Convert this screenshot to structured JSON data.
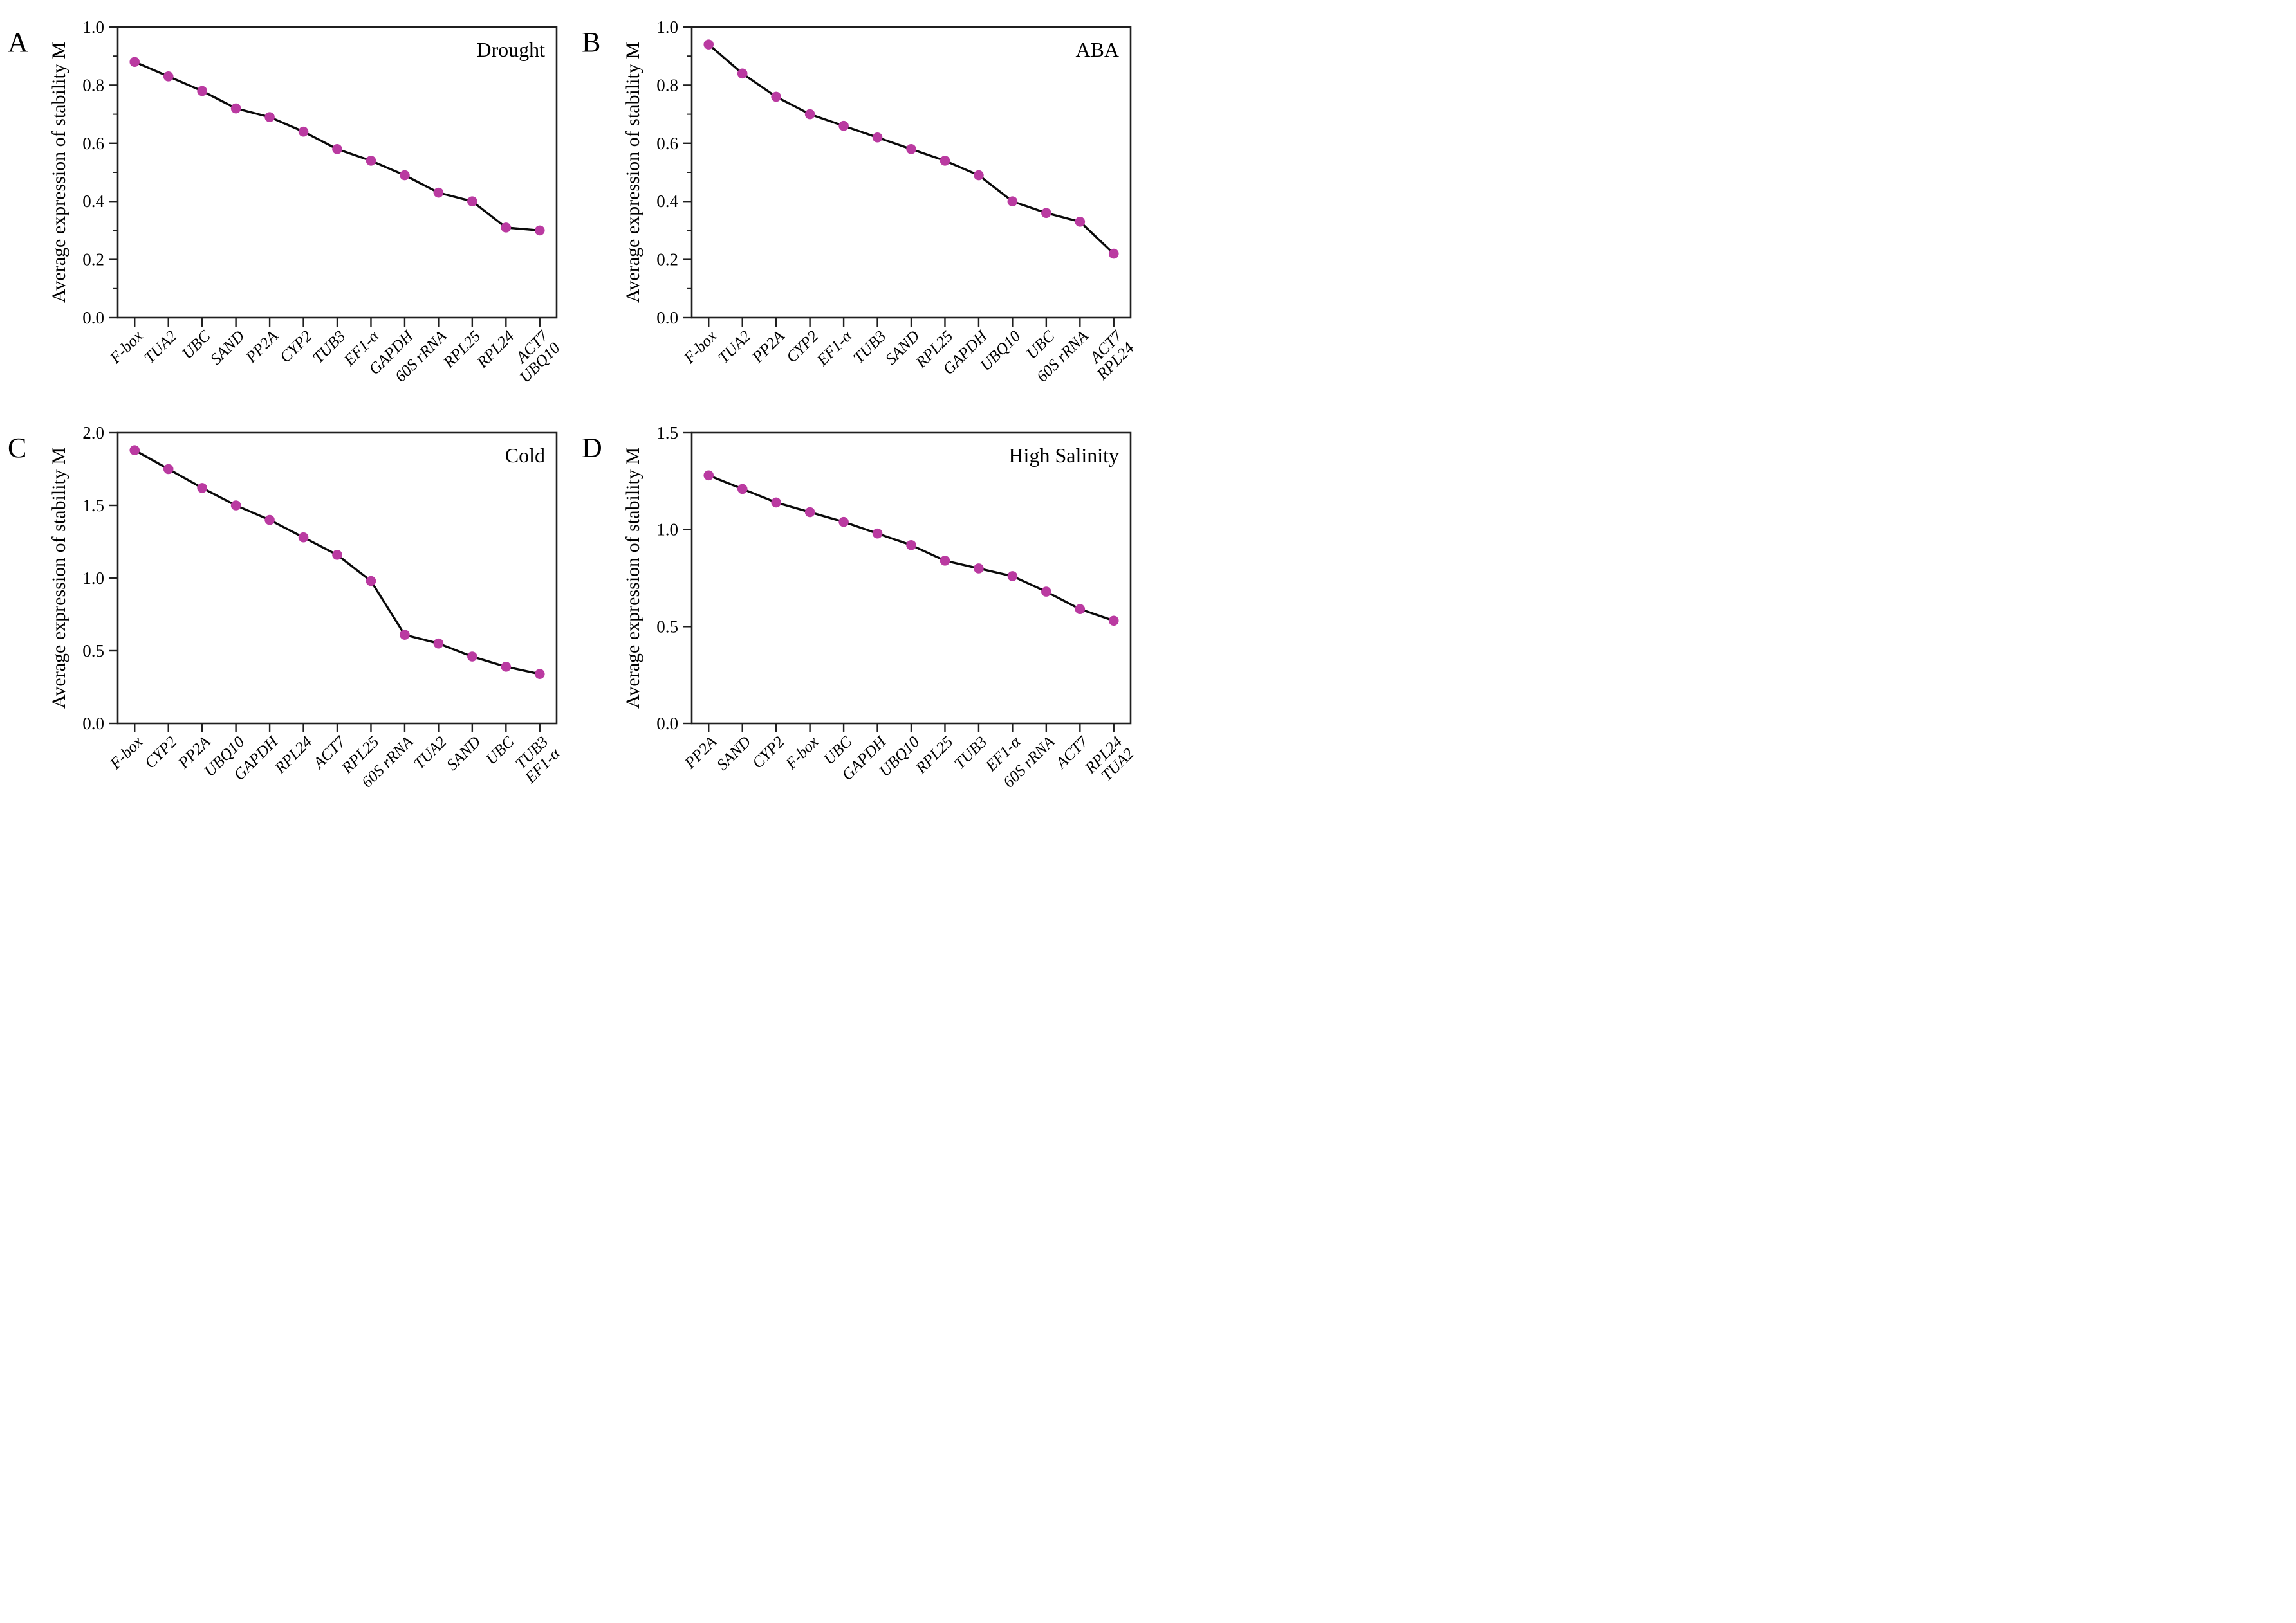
{
  "figure": {
    "background": "#ffffff",
    "marker_color": "#BA3AA1",
    "line_color": "#0a0a0a",
    "axis_color": "#1f1f1f",
    "y_axis_title": "Average expression of stability M"
  },
  "chart_data": [
    {
      "type": "line",
      "letter": "A",
      "title": "Drought",
      "ylabel": "Average expression of stability M",
      "ylim": [
        0.0,
        1.0
      ],
      "yticks": [
        0.0,
        0.2,
        0.4,
        0.6,
        0.8,
        1.0
      ],
      "minor_tick_step": 0.1,
      "legend_position": "none",
      "grid": false,
      "categories": [
        "F-box",
        "TUA2",
        "UBC",
        "SAND",
        "PP2A",
        "CYP2",
        "TUB3",
        "EF1-α",
        "GAPDH",
        "60S rRNA",
        "RPL25",
        "RPL24",
        "ACT7\nUBQ10"
      ],
      "values": [
        0.88,
        0.83,
        0.78,
        0.72,
        0.69,
        0.64,
        0.58,
        0.54,
        0.49,
        0.43,
        0.4,
        0.31,
        0.3
      ]
    },
    {
      "type": "line",
      "letter": "B",
      "title": "ABA",
      "ylabel": "Average expression of stability M",
      "ylim": [
        0.0,
        1.0
      ],
      "yticks": [
        0.0,
        0.2,
        0.4,
        0.6,
        0.8,
        1.0
      ],
      "minor_tick_step": 0.1,
      "legend_position": "none",
      "grid": false,
      "categories": [
        "F-box",
        "TUA2",
        "PP2A",
        "CYP2",
        "EF1-α",
        "TUB3",
        "SAND",
        "RPL25",
        "GAPDH",
        "UBQ10",
        "UBC",
        "60S rRNA",
        "ACT7\nRPL24"
      ],
      "values": [
        0.94,
        0.84,
        0.76,
        0.7,
        0.66,
        0.62,
        0.58,
        0.54,
        0.49,
        0.4,
        0.36,
        0.33,
        0.22
      ]
    },
    {
      "type": "line",
      "letter": "C",
      "title": "Cold",
      "ylabel": "Average expression of stability M",
      "ylim": [
        0.0,
        2.0
      ],
      "yticks": [
        0.0,
        0.5,
        1.0,
        1.5,
        2.0
      ],
      "minor_tick_step": null,
      "legend_position": "none",
      "grid": false,
      "categories": [
        "F-box",
        "CYP2",
        "PP2A",
        "UBQ10",
        "GAPDH",
        "RPL24",
        "ACT7",
        "RPL25",
        "60S rRNA",
        "TUA2",
        "SAND",
        "UBC",
        "TUB3\nEF1-α"
      ],
      "values": [
        1.88,
        1.75,
        1.62,
        1.5,
        1.4,
        1.28,
        1.16,
        0.98,
        0.61,
        0.55,
        0.46,
        0.39,
        0.34
      ]
    },
    {
      "type": "line",
      "letter": "D",
      "title": "High Salinity",
      "ylabel": "Average expression of stability M",
      "ylim": [
        0.0,
        1.5
      ],
      "yticks": [
        0.0,
        0.5,
        1.0,
        1.5
      ],
      "minor_tick_step": null,
      "legend_position": "none",
      "grid": false,
      "categories": [
        "PP2A",
        "SAND",
        "CYP2",
        "F-box",
        "UBC",
        "GAPDH",
        "UBQ10",
        "RPL25",
        "TUB3",
        "EF1-α",
        "60S rRNA",
        "ACT7",
        "RPL24\nTUA2"
      ],
      "values": [
        1.28,
        1.21,
        1.14,
        1.09,
        1.04,
        0.98,
        0.92,
        0.84,
        0.8,
        0.76,
        0.68,
        0.59,
        0.53
      ]
    }
  ]
}
